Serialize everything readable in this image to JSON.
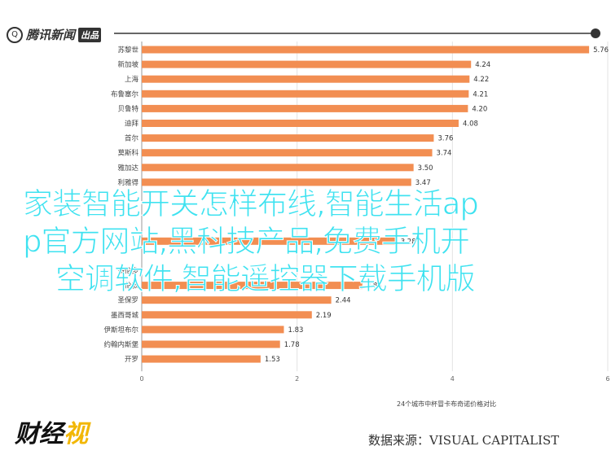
{
  "header": {
    "logo_glyph": "Q",
    "logo_text": "腾讯新闻",
    "logo_tag": "出品"
  },
  "overlay": {
    "line1": "家装智能开关怎样布线,智能生活ap",
    "line2": "p官方网站,黑科技产品,免费手机开",
    "line3": "空调软件,智能遥控器下载手机版",
    "color": "#3ee2f0"
  },
  "footer": {
    "brand_text": "财经",
    "brand_accent": "视",
    "source": "数据来源：VISUAL CAPITALIST"
  },
  "chart_data": {
    "type": "bar",
    "orientation": "horizontal",
    "bar_color": "#f28e52",
    "xlabel": "24个城市中杯冒卡布奇诺价格对比",
    "xlim": [
      0,
      6
    ],
    "xticks": [
      0,
      2,
      4,
      6
    ],
    "categories": [
      "苏黎世",
      "新加坡",
      "上海",
      "布鲁塞尔",
      "贝鲁特",
      "迪拜",
      "首尔",
      "莫斯科",
      "雅加达",
      "利雅得",
      "",
      "",
      "",
      "",
      "",
      "多伦多",
      "伦敦",
      "圣保罗",
      "墨西哥城",
      "伊斯坦布尔",
      "约翰内斯堡",
      "开罗"
    ],
    "values": [
      5.76,
      4.24,
      4.22,
      4.21,
      4.2,
      4.08,
      3.76,
      3.74,
      3.5,
      3.47,
      null,
      null,
      null,
      3.28,
      null,
      null,
      2.84,
      2.44,
      2.19,
      1.83,
      1.78,
      1.53
    ],
    "value_labels": [
      "5.76",
      "4.24",
      "4.22",
      "4.21",
      "4.20",
      "4.08",
      "3.76",
      "3.74",
      "3.50",
      "3.47",
      "",
      "",
      "",
      "3.28",
      "",
      "",
      "2.84",
      "2.44",
      "2.19",
      "1.83",
      "1.78",
      "1.53"
    ]
  }
}
